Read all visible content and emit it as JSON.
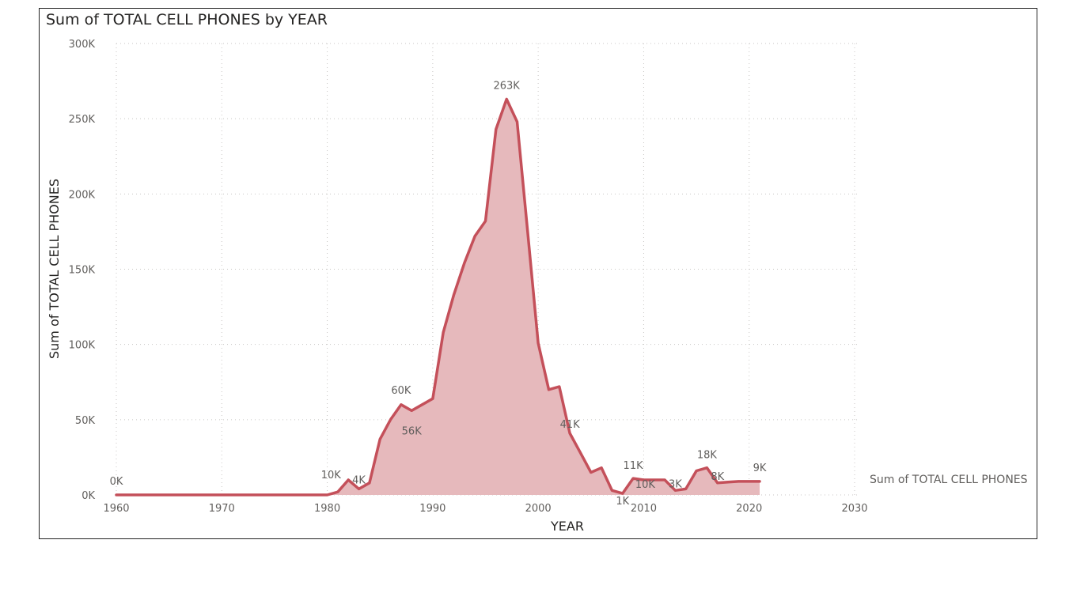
{
  "chart_data": {
    "type": "area",
    "title": "Sum of TOTAL CELL PHONES by YEAR",
    "xlabel": "YEAR",
    "ylabel": "Sum of TOTAL CELL PHONES",
    "legend": "Sum of TOTAL CELL PHONES",
    "legend_position": "right",
    "xlim": [
      1960,
      2030
    ],
    "ylim": [
      0,
      300000
    ],
    "x_ticks": [
      1960,
      1970,
      1980,
      1990,
      2000,
      2010,
      2020,
      2030
    ],
    "x_tick_labels": [
      "1960",
      "1970",
      "1980",
      "1990",
      "2000",
      "2010",
      "2020",
      "2030"
    ],
    "y_ticks": [
      0,
      50000,
      100000,
      150000,
      200000,
      250000,
      300000
    ],
    "y_tick_labels": [
      "0K",
      "50K",
      "100K",
      "150K",
      "200K",
      "250K",
      "300K"
    ],
    "grid": true,
    "color": "#c4505a",
    "fill_color": "#e6b9bc",
    "series": [
      {
        "name": "Sum of TOTAL CELL PHONES",
        "x": [
          1960,
          1980,
          1981,
          1982,
          1983,
          1984,
          1985,
          1986,
          1987,
          1988,
          1989,
          1990,
          1991,
          1992,
          1993,
          1994,
          1995,
          1996,
          1997,
          1998,
          1999,
          2000,
          2001,
          2002,
          2003,
          2004,
          2005,
          2006,
          2007,
          2008,
          2009,
          2010,
          2011,
          2012,
          2013,
          2014,
          2015,
          2016,
          2017,
          2018,
          2019,
          2020,
          2021
        ],
        "y": [
          0,
          0,
          2000,
          10000,
          4000,
          8000,
          37000,
          50000,
          60000,
          56000,
          60000,
          64000,
          108000,
          133000,
          154000,
          172000,
          182000,
          243000,
          263000,
          248000,
          175000,
          101000,
          70000,
          72000,
          41000,
          28000,
          15000,
          18000,
          3000,
          1000,
          11000,
          10000,
          10000,
          10000,
          3000,
          4000,
          16000,
          18000,
          8000,
          8500,
          9000,
          9000,
          9000
        ]
      }
    ],
    "data_labels": [
      {
        "x": 1960,
        "y": 0,
        "text": "0K"
      },
      {
        "x": 1982,
        "y": 10000,
        "text": "10K"
      },
      {
        "x": 1983,
        "y": 4000,
        "text": "4K"
      },
      {
        "x": 1987,
        "y": 60000,
        "text": "60K"
      },
      {
        "x": 1988,
        "y": 56000,
        "text": "56K"
      },
      {
        "x": 1997,
        "y": 263000,
        "text": "263K"
      },
      {
        "x": 2003,
        "y": 41000,
        "text": "41K"
      },
      {
        "x": 2008,
        "y": 1000,
        "text": "1K"
      },
      {
        "x": 2009,
        "y": 11000,
        "text": "11K"
      },
      {
        "x": 2010,
        "y": 10000,
        "text": "10K"
      },
      {
        "x": 2013,
        "y": 3000,
        "text": "3K"
      },
      {
        "x": 2016,
        "y": 18000,
        "text": "18K"
      },
      {
        "x": 2017,
        "y": 8000,
        "text": "8K"
      },
      {
        "x": 2021,
        "y": 9000,
        "text": "9K"
      }
    ]
  }
}
